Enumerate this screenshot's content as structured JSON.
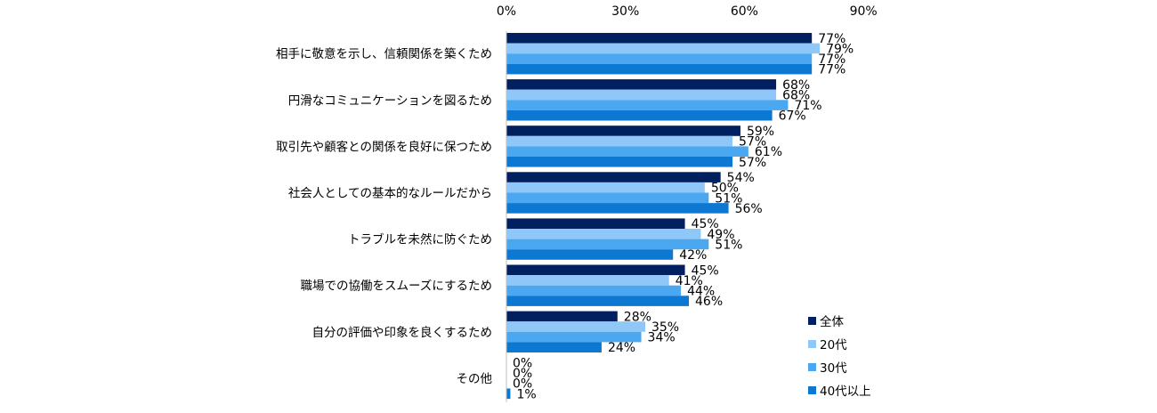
{
  "chart_data": {
    "type": "bar",
    "orientation": "horizontal",
    "title": "",
    "xlabel": "",
    "ylabel": "",
    "xlim": [
      0,
      90
    ],
    "ticks": [
      0,
      30,
      60,
      90
    ],
    "tick_labels": [
      "0%",
      "30%",
      "60%",
      "90%"
    ],
    "grid": false,
    "legend_position": "bottom-right",
    "categories": [
      "相手に敬意を示し、信頼関係を築くため",
      "円滑なコミュニケーションを図るため",
      "取引先や顧客との関係を良好に保つため",
      "社会人としての基本的なルールだから",
      "トラブルを未然に防ぐため",
      "職場での協働をスムーズにするため",
      "自分の評価や印象を良くするため",
      "その他"
    ],
    "series": [
      {
        "name": "全体",
        "color": "#002060",
        "values": [
          77,
          68,
          59,
          54,
          45,
          45,
          28,
          0
        ],
        "labels": [
          "77%",
          "68%",
          "59%",
          "54%",
          "45%",
          "45%",
          "28%",
          "0%"
        ]
      },
      {
        "name": "20代",
        "color": "#8FC8F8",
        "values": [
          79,
          68,
          57,
          50,
          49,
          41,
          35,
          0
        ],
        "labels": [
          "79%",
          "68%",
          "57%",
          "50%",
          "49%",
          "41%",
          "35%",
          "0%"
        ]
      },
      {
        "name": "30代",
        "color": "#4BA8F0",
        "values": [
          77,
          71,
          61,
          51,
          51,
          44,
          34,
          0
        ],
        "labels": [
          "77%",
          "71%",
          "61%",
          "51%",
          "51%",
          "44%",
          "34%",
          "0%"
        ]
      },
      {
        "name": "40代以上",
        "color": "#0C78D2",
        "values": [
          77,
          67,
          57,
          56,
          42,
          46,
          24,
          1
        ],
        "labels": [
          "77%",
          "67%",
          "57%",
          "56%",
          "42%",
          "46%",
          "24%",
          "1%"
        ]
      }
    ]
  }
}
